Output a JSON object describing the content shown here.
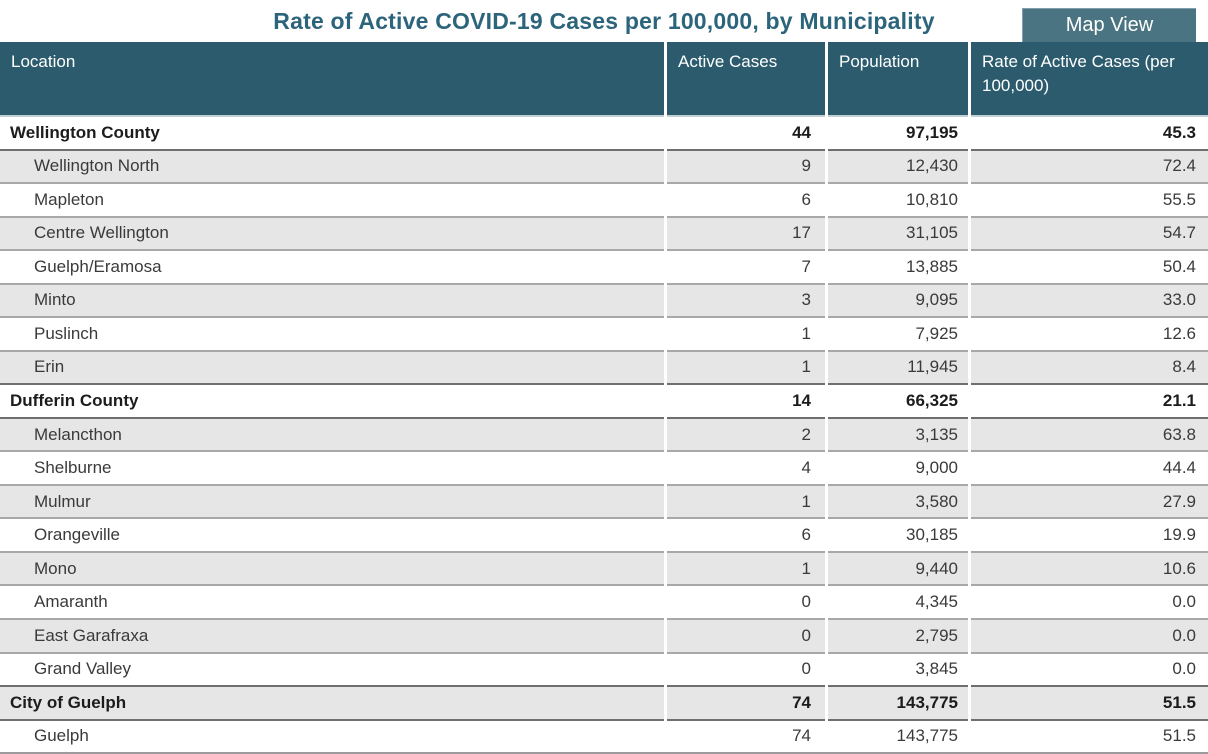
{
  "header": {
    "title": "Rate of Active COVID-19 Cases per 100,000, by Municipality",
    "map_view_button": "Map View"
  },
  "colors": {
    "table_header_bg": "#2b5b6d",
    "map_button_bg": "#4a7481",
    "title_text": "#2c647c",
    "alt_row_bg": "#e6e6e6",
    "row_border": "#a8a8a8"
  },
  "chart_data": {
    "type": "table",
    "title": "Rate of Active COVID-19 Cases per 100,000, by Municipality",
    "columns": [
      "Location",
      "Active Cases",
      "Population",
      "Rate of Active Cases (per 100,000)"
    ],
    "rows": [
      {
        "location": "Wellington County",
        "active_cases": "44",
        "population": "97,195",
        "rate": "45.3",
        "level": "county"
      },
      {
        "location": "Wellington North",
        "active_cases": "9",
        "population": "12,430",
        "rate": "72.4",
        "level": "municipality"
      },
      {
        "location": "Mapleton",
        "active_cases": "6",
        "population": "10,810",
        "rate": "55.5",
        "level": "municipality"
      },
      {
        "location": "Centre Wellington",
        "active_cases": "17",
        "population": "31,105",
        "rate": "54.7",
        "level": "municipality"
      },
      {
        "location": "Guelph/Eramosa",
        "active_cases": "7",
        "population": "13,885",
        "rate": "50.4",
        "level": "municipality"
      },
      {
        "location": "Minto",
        "active_cases": "3",
        "population": "9,095",
        "rate": "33.0",
        "level": "municipality"
      },
      {
        "location": "Puslinch",
        "active_cases": "1",
        "population": "7,925",
        "rate": "12.6",
        "level": "municipality"
      },
      {
        "location": "Erin",
        "active_cases": "1",
        "population": "11,945",
        "rate": "8.4",
        "level": "municipality"
      },
      {
        "location": "Dufferin County",
        "active_cases": "14",
        "population": "66,325",
        "rate": "21.1",
        "level": "county"
      },
      {
        "location": "Melancthon",
        "active_cases": "2",
        "population": "3,135",
        "rate": "63.8",
        "level": "municipality"
      },
      {
        "location": "Shelburne",
        "active_cases": "4",
        "population": "9,000",
        "rate": "44.4",
        "level": "municipality"
      },
      {
        "location": "Mulmur",
        "active_cases": "1",
        "population": "3,580",
        "rate": "27.9",
        "level": "municipality"
      },
      {
        "location": "Orangeville",
        "active_cases": "6",
        "population": "30,185",
        "rate": "19.9",
        "level": "municipality"
      },
      {
        "location": "Mono",
        "active_cases": "1",
        "population": "9,440",
        "rate": "10.6",
        "level": "municipality"
      },
      {
        "location": "Amaranth",
        "active_cases": "0",
        "population": "4,345",
        "rate": "0.0",
        "level": "municipality"
      },
      {
        "location": "East Garafraxa",
        "active_cases": "0",
        "population": "2,795",
        "rate": "0.0",
        "level": "municipality"
      },
      {
        "location": "Grand Valley",
        "active_cases": "0",
        "population": "3,845",
        "rate": "0.0",
        "level": "municipality"
      },
      {
        "location": "City of Guelph",
        "active_cases": "74",
        "population": "143,775",
        "rate": "51.5",
        "level": "county"
      },
      {
        "location": "Guelph",
        "active_cases": "74",
        "population": "143,775",
        "rate": "51.5",
        "level": "municipality"
      }
    ]
  }
}
